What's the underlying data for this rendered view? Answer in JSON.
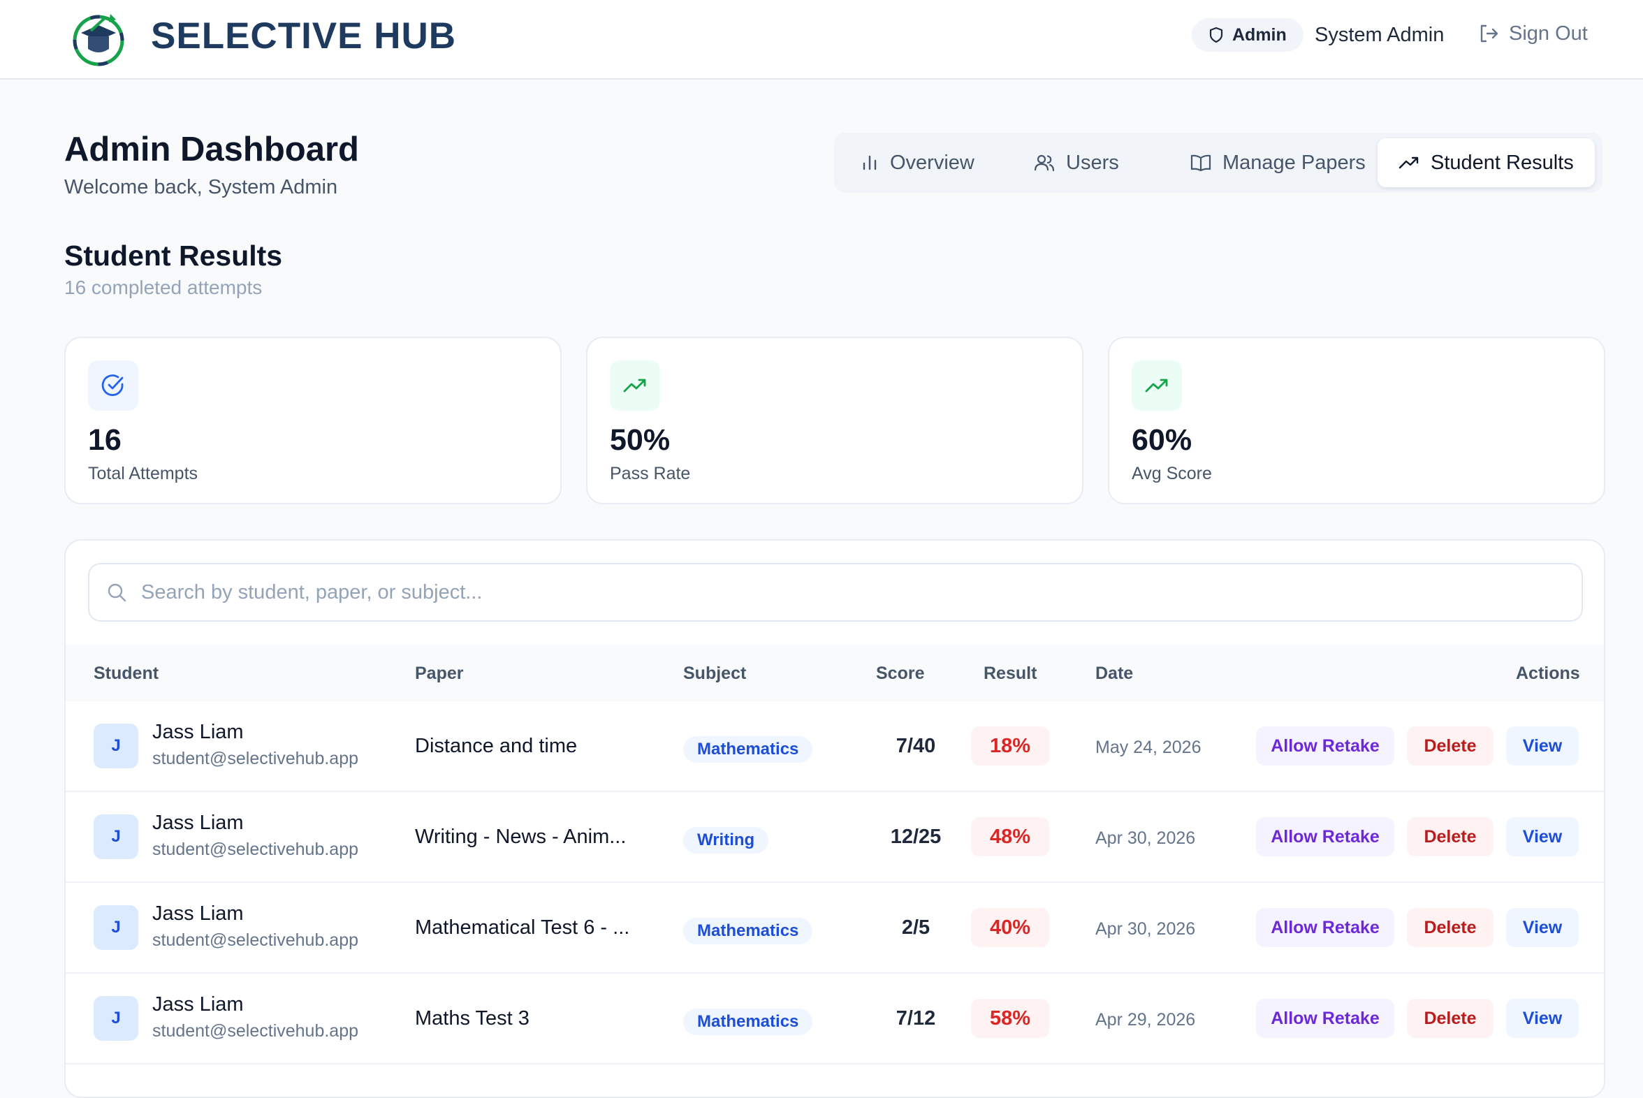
{
  "header": {
    "brand": "SELECTIVE HUB",
    "role_badge": "Admin",
    "user_name": "System Admin",
    "sign_out": "Sign Out"
  },
  "page": {
    "title": "Admin Dashboard",
    "subtitle": "Welcome back, System Admin"
  },
  "tabs": [
    {
      "label": "Overview",
      "icon": "bar-chart-icon",
      "active": false
    },
    {
      "label": "Users",
      "icon": "users-icon",
      "active": false
    },
    {
      "label": "Manage Papers",
      "icon": "book-icon",
      "active": false
    },
    {
      "label": "Student Results",
      "icon": "trending-up-icon",
      "active": true
    }
  ],
  "section": {
    "title": "Student Results",
    "subtitle": "16 completed attempts"
  },
  "stats": [
    {
      "value": "16",
      "label": "Total Attempts",
      "icon": "check-circle-icon",
      "accent": "#2563eb",
      "bg": "#eff6ff"
    },
    {
      "value": "50%",
      "label": "Pass Rate",
      "icon": "trending-up-icon",
      "accent": "#16a34a",
      "bg": "#ecfdf5"
    },
    {
      "value": "60%",
      "label": "Avg Score",
      "icon": "trending-up-icon",
      "accent": "#16a34a",
      "bg": "#ecfdf5"
    }
  ],
  "search": {
    "placeholder": "Search by student, paper, or subject...",
    "value": ""
  },
  "table": {
    "columns": [
      "Student",
      "Paper",
      "Subject",
      "Score",
      "Result",
      "Date",
      "Actions"
    ],
    "rows": [
      {
        "initial": "J",
        "name": "Jass Liam",
        "email": "student@selectivehub.app",
        "paper": "Distance and time",
        "subject": "Mathematics",
        "score": "7/40",
        "result": "18%",
        "date": "May 24, 2026",
        "retake": "Allow Retake",
        "delete": "Delete",
        "view": "View"
      },
      {
        "initial": "J",
        "name": "Jass Liam",
        "email": "student@selectivehub.app",
        "paper": "Writing - News - Anim...",
        "subject": "Writing",
        "score": "12/25",
        "result": "48%",
        "date": "Apr 30, 2026",
        "retake": "Allow Retake",
        "delete": "Delete",
        "view": "View"
      },
      {
        "initial": "J",
        "name": "Jass Liam",
        "email": "student@selectivehub.app",
        "paper": "Mathematical Test 6 - ...",
        "subject": "Mathematics",
        "score": "2/5",
        "result": "40%",
        "date": "Apr 30, 2026",
        "retake": "Allow Retake",
        "delete": "Delete",
        "view": "View"
      },
      {
        "initial": "J",
        "name": "Jass Liam",
        "email": "student@selectivehub.app",
        "paper": "Maths Test 3",
        "subject": "Mathematics",
        "score": "7/12",
        "result": "58%",
        "date": "Apr 29, 2026",
        "retake": "Allow Retake",
        "delete": "Delete",
        "view": "View"
      }
    ]
  }
}
